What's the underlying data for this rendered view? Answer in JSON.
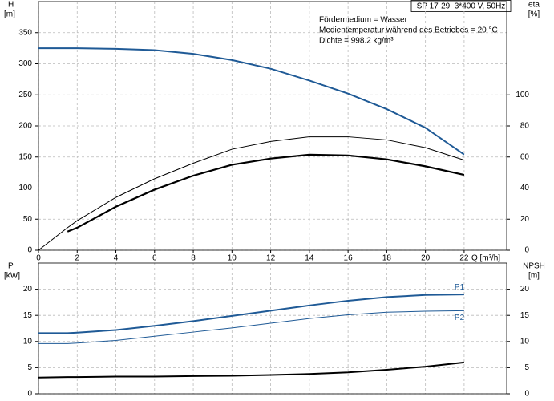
{
  "chart_data": [
    {
      "type": "line",
      "title": "SP 17-29, 3*400 V, 50Hz",
      "notes": [
        "Fördermedium = Wasser",
        "Medientemperatur während des Betriebes = 20 °C",
        "Dichte = 998.2 kg/m³"
      ],
      "ylabel": "H",
      "yunit": "[m]",
      "y2label": "eta",
      "y2unit": "[%]",
      "xlabel": "Q [m³/h]",
      "x": [
        0,
        1.5,
        2,
        4,
        6,
        8,
        10,
        12,
        14,
        16,
        18,
        20,
        22
      ],
      "xlim": [
        0,
        24.2
      ],
      "xticks": [
        0,
        2,
        4,
        6,
        8,
        10,
        12,
        14,
        16,
        18,
        20,
        22
      ],
      "ylim": [
        0,
        400
      ],
      "yticks": [
        0,
        50,
        100,
        150,
        200,
        250,
        300,
        350
      ],
      "y2lim": [
        0,
        160
      ],
      "y2ticks": [
        0,
        20,
        40,
        60,
        80,
        100
      ],
      "grid": true,
      "series": [
        {
          "color": "#1f5a96",
          "width": 2,
          "values": [
            325,
            325,
            325,
            324,
            322,
            316,
            306,
            292,
            273,
            252,
            227,
            197,
            154
          ]
        },
        {
          "color": "#000000",
          "width": 1,
          "axis": "y2",
          "values": [
            0,
            14.5,
            19,
            34,
            46,
            56,
            65,
            70,
            73,
            73,
            71,
            66,
            58
          ]
        },
        {
          "color": "#000000",
          "width": 2.2,
          "axis": "y2",
          "values": [
            null,
            12,
            14.5,
            28,
            39,
            48,
            55,
            59,
            61.5,
            61,
            58.5,
            54,
            48.5
          ]
        }
      ]
    },
    {
      "type": "line",
      "ylabel": "P",
      "yunit": "[kW]",
      "y2label": "NPSH",
      "y2unit": "[m]",
      "x": [
        0,
        1.5,
        2,
        4,
        6,
        8,
        10,
        12,
        14,
        16,
        18,
        20,
        22
      ],
      "xlim": [
        0,
        24.2
      ],
      "ylim": [
        0,
        25
      ],
      "yticks": [
        0,
        5,
        10,
        15,
        20
      ],
      "y2lim": [
        0,
        25
      ],
      "y2ticks": [
        0,
        5,
        10,
        15,
        20
      ],
      "grid": true,
      "series": [
        {
          "name": "P1",
          "color": "#1f5a96",
          "width": 2,
          "values": [
            11.6,
            11.6,
            11.7,
            12.2,
            13,
            13.9,
            14.9,
            15.9,
            16.9,
            17.8,
            18.5,
            18.9,
            19.0
          ]
        },
        {
          "name": "P2",
          "color": "#1f5a96",
          "width": 1,
          "values": [
            9.6,
            9.6,
            9.7,
            10.2,
            11,
            11.8,
            12.6,
            13.5,
            14.4,
            15.1,
            15.6,
            15.8,
            15.9
          ]
        },
        {
          "color": "#000000",
          "width": 2,
          "axis": "y2",
          "values": [
            3.1,
            3.2,
            3.2,
            3.3,
            3.3,
            3.4,
            3.45,
            3.6,
            3.8,
            4.1,
            4.6,
            5.2,
            6.0
          ]
        }
      ]
    }
  ]
}
